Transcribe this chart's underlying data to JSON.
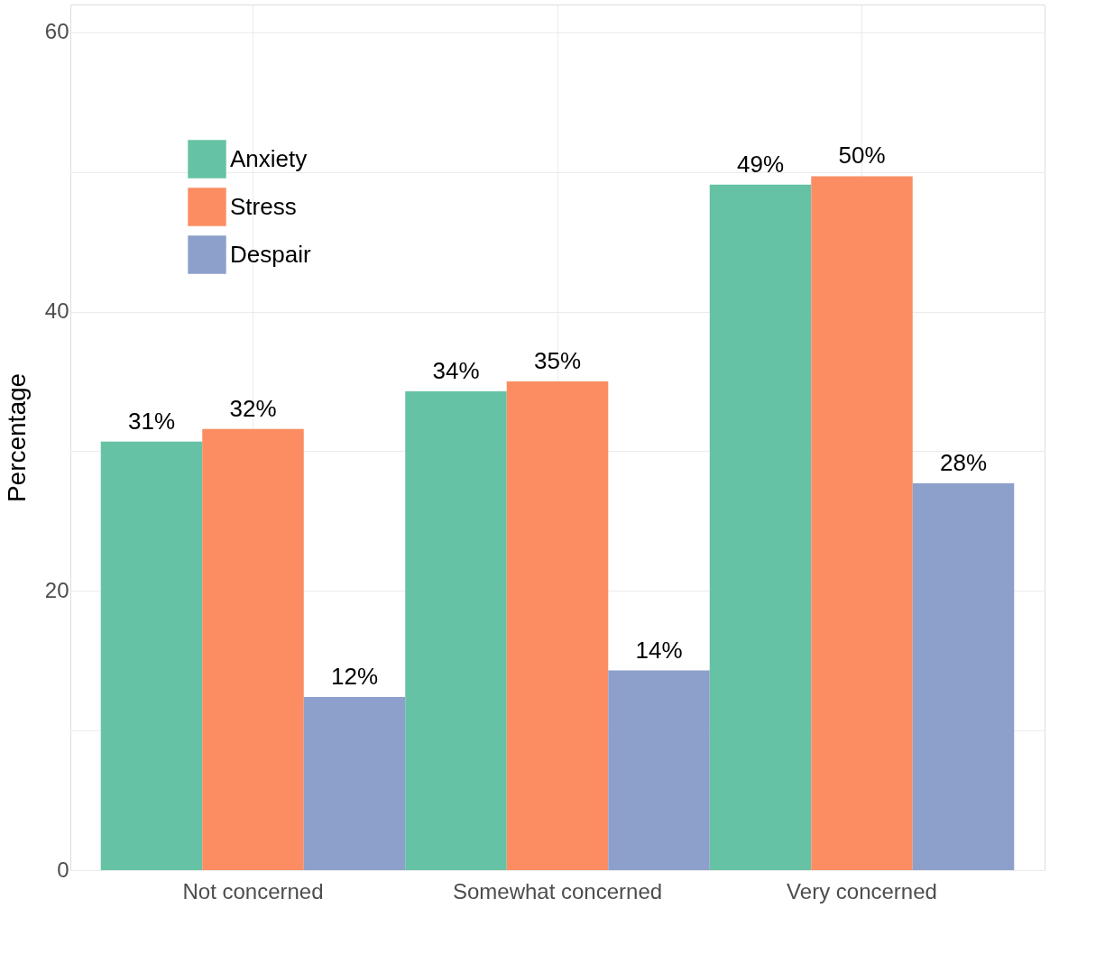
{
  "chart_data": {
    "type": "bar",
    "ylabel": "Percentage",
    "categories": [
      "Not concerned",
      "Somewhat concerned",
      "Very concerned"
    ],
    "series": [
      {
        "name": "Anxiety",
        "color": "#66c2a5",
        "values": [
          30.7,
          34.3,
          49.1
        ],
        "value_labels": [
          "31%",
          "34%",
          "49%"
        ]
      },
      {
        "name": "Stress",
        "color": "#fc8d62",
        "values": [
          31.6,
          35.0,
          49.7
        ],
        "value_labels": [
          "32%",
          "35%",
          "50%"
        ]
      },
      {
        "name": "Despair",
        "color": "#8da0cb",
        "values": [
          12.4,
          14.3,
          27.7
        ],
        "value_labels": [
          "12%",
          "14%",
          "28%"
        ]
      }
    ],
    "ylim": [
      0,
      62
    ],
    "yticks": [
      0,
      {
        "value": 10,
        "label": null
      },
      20,
      {
        "value": 30,
        "label": null
      },
      40,
      {
        "value": 50,
        "label": null
      },
      60
    ],
    "grid": true,
    "legend": "top left"
  }
}
